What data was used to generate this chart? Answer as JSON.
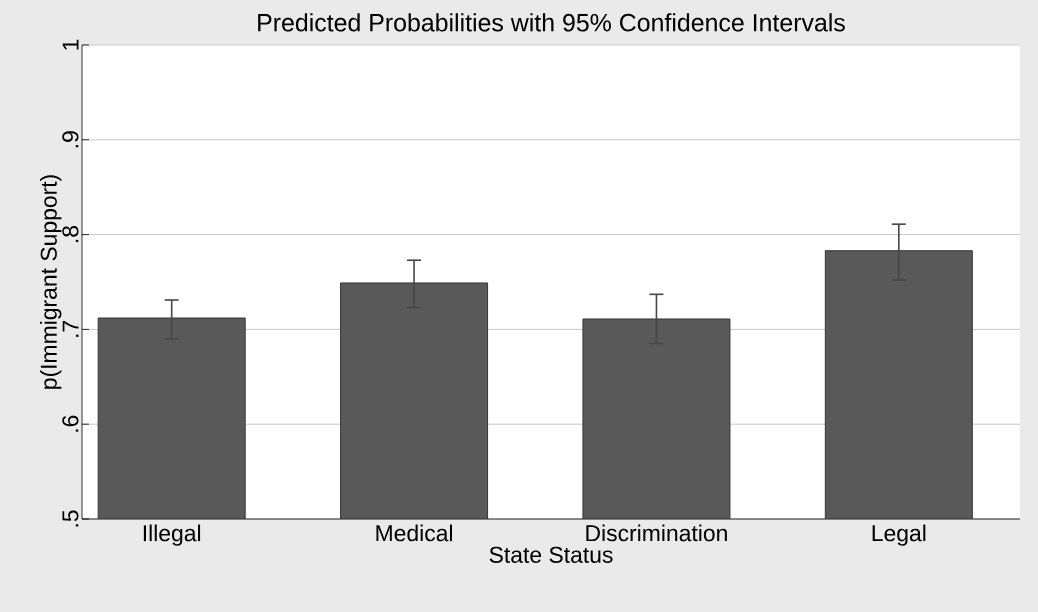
{
  "chart_data": {
    "type": "bar",
    "title": "Predicted Probabilities with 95% Confidence Intervals",
    "xlabel": "State Status",
    "ylabel": "p(Immigrant Support)",
    "categories": [
      "Illegal",
      "Medical",
      "Discrimination",
      "Legal"
    ],
    "values": [
      0.712,
      0.749,
      0.711,
      0.783
    ],
    "errors": [
      [
        0.69,
        0.731
      ],
      [
        0.723,
        0.773
      ],
      [
        0.685,
        0.737
      ],
      [
        0.752,
        0.811
      ]
    ],
    "color": "#595959",
    "ylim": [
      0.5,
      1
    ],
    "yticks": [
      {
        "value": 0.5,
        "label": ".5"
      },
      {
        "value": 0.6,
        "label": ".6"
      },
      {
        "value": 0.7,
        "label": ".7"
      },
      {
        "value": 0.8,
        "label": ".8"
      },
      {
        "value": 0.9,
        "label": ".9"
      },
      {
        "value": 1,
        "label": "1"
      }
    ],
    "grid": "y"
  }
}
